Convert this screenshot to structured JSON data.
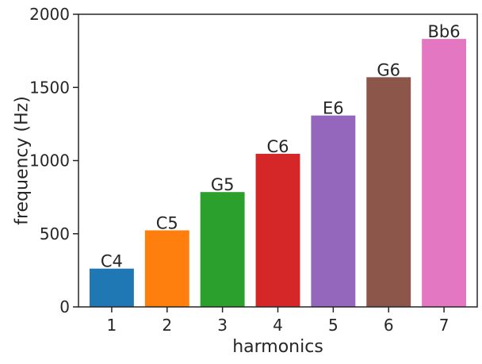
{
  "chart_data": {
    "type": "bar",
    "title": "",
    "xlabel": "harmonics",
    "ylabel": "frequency (Hz)",
    "categories": [
      "1",
      "2",
      "3",
      "4",
      "5",
      "6",
      "7"
    ],
    "values": [
      261.63,
      523.25,
      784.88,
      1046.5,
      1308.13,
      1569.75,
      1831.38
    ],
    "bar_labels": [
      "C4",
      "C5",
      "G5",
      "C6",
      "E6",
      "G6",
      "Bb6"
    ],
    "colors": [
      "#1f77b4",
      "#ff7f0e",
      "#2ca02c",
      "#d62728",
      "#9467bd",
      "#8c564b",
      "#e377c2"
    ],
    "ylim": [
      0,
      2000
    ],
    "yticks": [
      0,
      500,
      1000,
      1500,
      2000
    ],
    "grid": false,
    "legend": "none"
  }
}
